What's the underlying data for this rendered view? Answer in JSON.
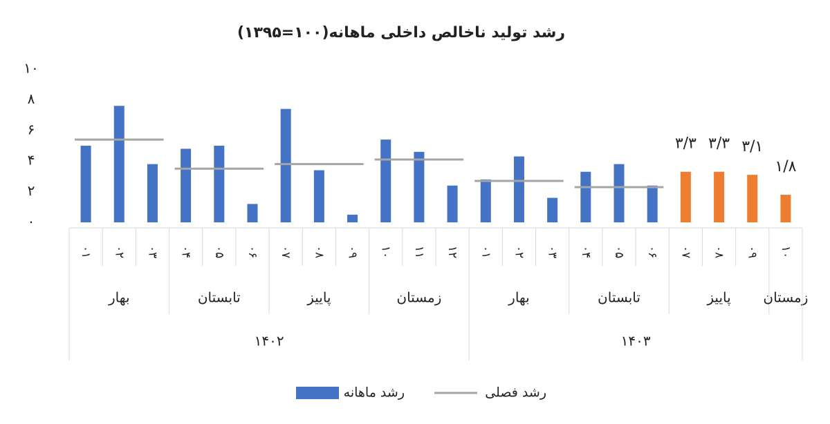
{
  "chart_data": {
    "type": "bar",
    "title": "رشد تولید ناخالص داخلی ماهانه(۱۰۰=۱۳۹۵)",
    "series": [
      {
        "name": "رشد ماهانه",
        "color": "#4472c4"
      },
      {
        "name": "رشد فصلی",
        "color": "#a5a5a5"
      }
    ],
    "ylim": [
      0,
      10
    ],
    "yticks": [
      {
        "value": 0,
        "label": "۰"
      },
      {
        "value": 2,
        "label": "۲"
      },
      {
        "value": 4,
        "label": "۴"
      },
      {
        "value": 6,
        "label": "۶"
      },
      {
        "value": 8,
        "label": "۸"
      },
      {
        "value": 10,
        "label": "۱۰"
      }
    ],
    "years": [
      {
        "name": "۱۴۰۲",
        "seasons": [
          {
            "name": "بهار",
            "months": [
              "۰۱",
              "۰۲",
              "۰۳"
            ],
            "monthly": [
              5.0,
              7.6,
              3.8
            ],
            "seasonal": 5.4
          },
          {
            "name": "تابستان",
            "months": [
              "۰۴",
              "۰۵",
              "۰۶"
            ],
            "monthly": [
              4.8,
              5.0,
              1.2
            ],
            "seasonal": 3.5
          },
          {
            "name": "پاییز",
            "months": [
              "۰۷",
              "۰۸",
              "۰۹"
            ],
            "monthly": [
              7.4,
              3.4,
              0.5
            ],
            "seasonal": 3.8
          },
          {
            "name": "زمستان",
            "months": [
              "۱۰",
              "۱۱",
              "۱۲"
            ],
            "monthly": [
              5.4,
              4.6,
              2.4
            ],
            "seasonal": 4.1
          }
        ]
      },
      {
        "name": "۱۴۰۳",
        "seasons": [
          {
            "name": "بهار",
            "months": [
              "۰۱",
              "۰۲",
              "۰۳"
            ],
            "monthly": [
              2.8,
              4.3,
              1.6
            ],
            "seasonal": 2.7
          },
          {
            "name": "تابستان",
            "months": [
              "۰۴",
              "۰۵",
              "۰۶"
            ],
            "monthly": [
              3.3,
              3.8,
              2.4
            ],
            "seasonal": 2.3
          },
          {
            "name": "پاییز",
            "months": [
              "۰۷",
              "۰۸",
              "۰۹"
            ],
            "monthly": [
              3.3,
              3.3,
              3.1
            ],
            "value_labels": [
              "۳/۳",
              "۳/۳",
              "۳/۱"
            ],
            "color": "#ed7d31"
          },
          {
            "name": "زمستان",
            "months": [
              "۱۰"
            ],
            "monthly": [
              1.8
            ],
            "value_labels": [
              "۱/۸"
            ],
            "color": "#ed7d31"
          }
        ]
      }
    ]
  }
}
